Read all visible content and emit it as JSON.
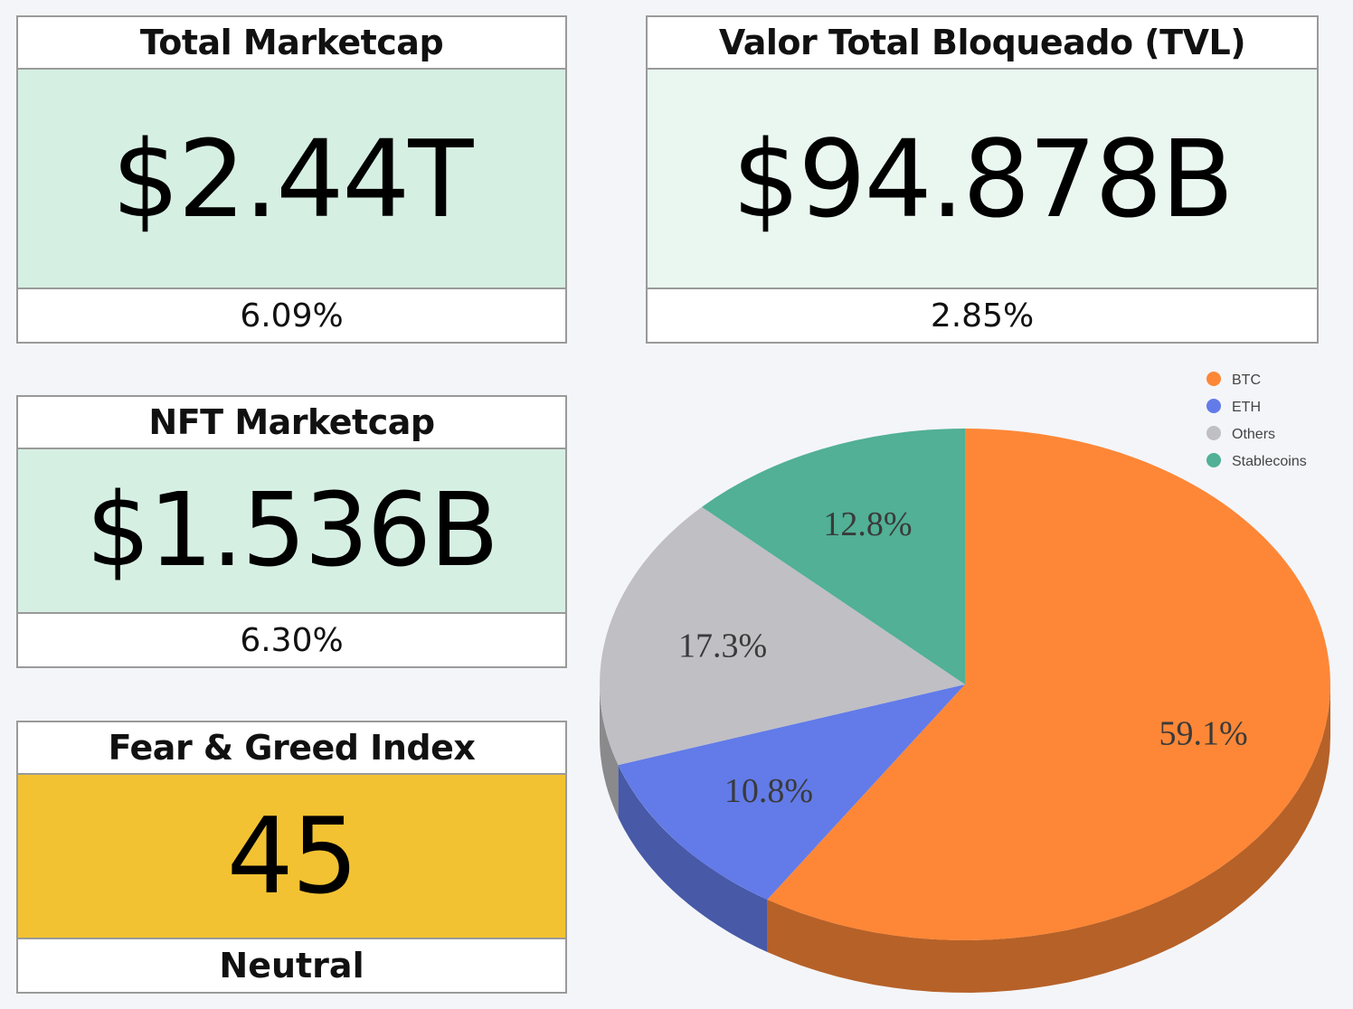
{
  "cards": {
    "total_marketcap": {
      "title": "Total Marketcap",
      "value": "$2.44T",
      "change": "6.09%",
      "bg": "#d6efe3"
    },
    "tvl": {
      "title": "Valor Total Bloqueado (TVL)",
      "value": "$94.878B",
      "change": "2.85%",
      "bg": "#e9f7f0"
    },
    "nft_marketcap": {
      "title": "NFT Marketcap",
      "value": "$1.536B",
      "change": "6.30%",
      "bg": "#d6efe3"
    },
    "fear_greed": {
      "title": "Fear & Greed Index",
      "value": "45",
      "label": "Neutral",
      "bg": "#f2c232"
    }
  },
  "chart_data": {
    "type": "pie",
    "style": "3d",
    "slices": [
      {
        "label": "BTC",
        "value": 59.1,
        "display": "59.1%",
        "color": "#fd8737"
      },
      {
        "label": "ETH",
        "value": 10.8,
        "display": "10.8%",
        "color": "#627be8"
      },
      {
        "label": "Others",
        "value": 17.3,
        "display": "17.3%",
        "color": "#c0bfc4"
      },
      {
        "label": "Stablecoins",
        "value": 12.8,
        "display": "12.8%",
        "color": "#51b095"
      }
    ],
    "legend_position": "top-right"
  }
}
